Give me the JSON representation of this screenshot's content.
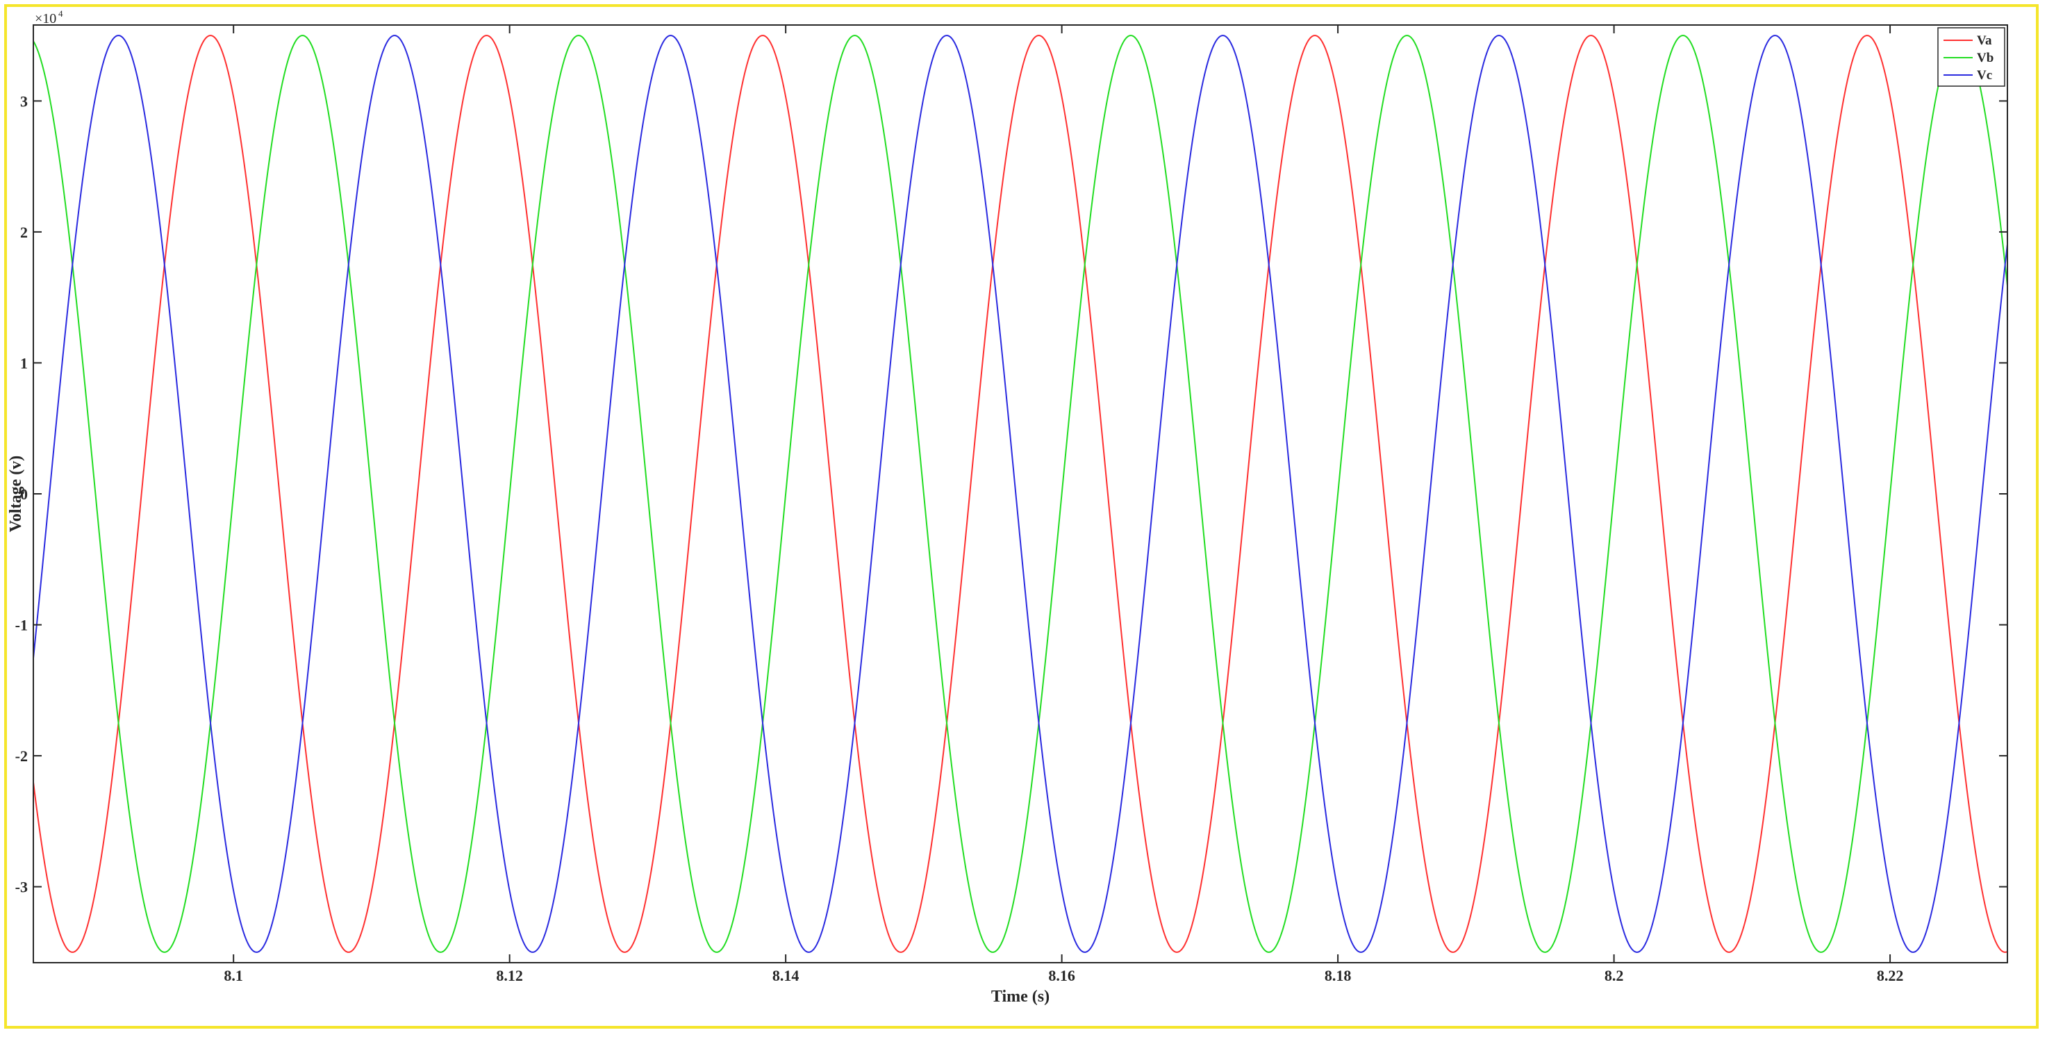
{
  "chart_data": {
    "type": "line",
    "title": "",
    "xlabel": "Time (s)",
    "ylabel": "Voltage (v)",
    "y_exponent_base": "×10",
    "y_exponent_power": "4",
    "xlim": [
      8.0855,
      8.2285
    ],
    "ylim": [
      -35800,
      35800
    ],
    "xticks": [
      8.1,
      8.12,
      8.14,
      8.16,
      8.18,
      8.2,
      8.22
    ],
    "xtick_labels": [
      "8.1",
      "8.12",
      "8.14",
      "8.16",
      "8.18",
      "8.2",
      "8.22"
    ],
    "yticks": [
      -30000,
      -20000,
      -10000,
      0,
      10000,
      20000,
      30000
    ],
    "ytick_labels": [
      "-3",
      "-2",
      "-1",
      "0",
      "1",
      "2",
      "3"
    ],
    "grid": false,
    "legend_position": "top-right",
    "series": [
      {
        "name": "Va",
        "color": "#ff3030",
        "amplitude": 35000,
        "frequency_hz": 50,
        "phase_deg": 120
      },
      {
        "name": "Vb",
        "color": "#22dd22",
        "amplitude": 35000,
        "frequency_hz": 50,
        "phase_deg": 0
      },
      {
        "name": "Vc",
        "color": "#2a2ae0",
        "amplitude": 35000,
        "frequency_hz": 50,
        "phase_deg": -120
      }
    ]
  }
}
